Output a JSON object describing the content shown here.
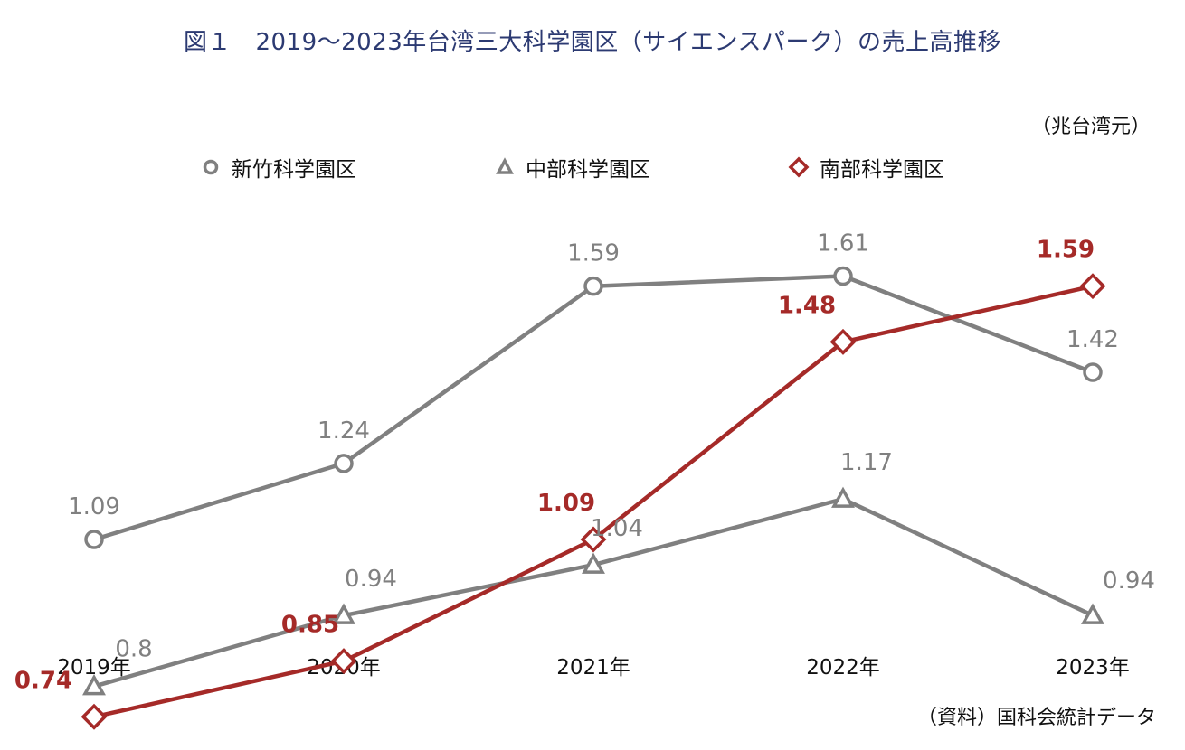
{
  "chart_data": {
    "type": "line",
    "title": "図１　2019～2023年台湾三大科学園区（サイエンスパーク）の売上高推移",
    "unit": "（兆台湾元）",
    "source": "（資料）国科会統計データ",
    "categories": [
      "2019年",
      "2020年",
      "2021年",
      "2022年",
      "2023年"
    ],
    "series": [
      {
        "name": "新竹科学園区",
        "values": [
          1.09,
          1.24,
          1.59,
          1.61,
          1.42
        ],
        "labels": [
          "1.09",
          "1.24",
          "1.59",
          "1.61",
          "1.42"
        ],
        "color": "#808080",
        "marker": "circle"
      },
      {
        "name": "中部科学園区",
        "values": [
          0.8,
          0.94,
          1.04,
          1.17,
          0.94
        ],
        "labels": [
          "0.8",
          "0.94",
          "1.04",
          "1.17",
          "0.94"
        ],
        "color": "#808080",
        "marker": "triangle"
      },
      {
        "name": "南部科学園区",
        "values": [
          0.74,
          0.85,
          1.09,
          1.48,
          1.59
        ],
        "labels": [
          "0.74",
          "0.85",
          "1.09",
          "1.48",
          "1.59"
        ],
        "color": "#a52a28",
        "marker": "diamond"
      }
    ],
    "legend_position": "top",
    "grid": false
  }
}
